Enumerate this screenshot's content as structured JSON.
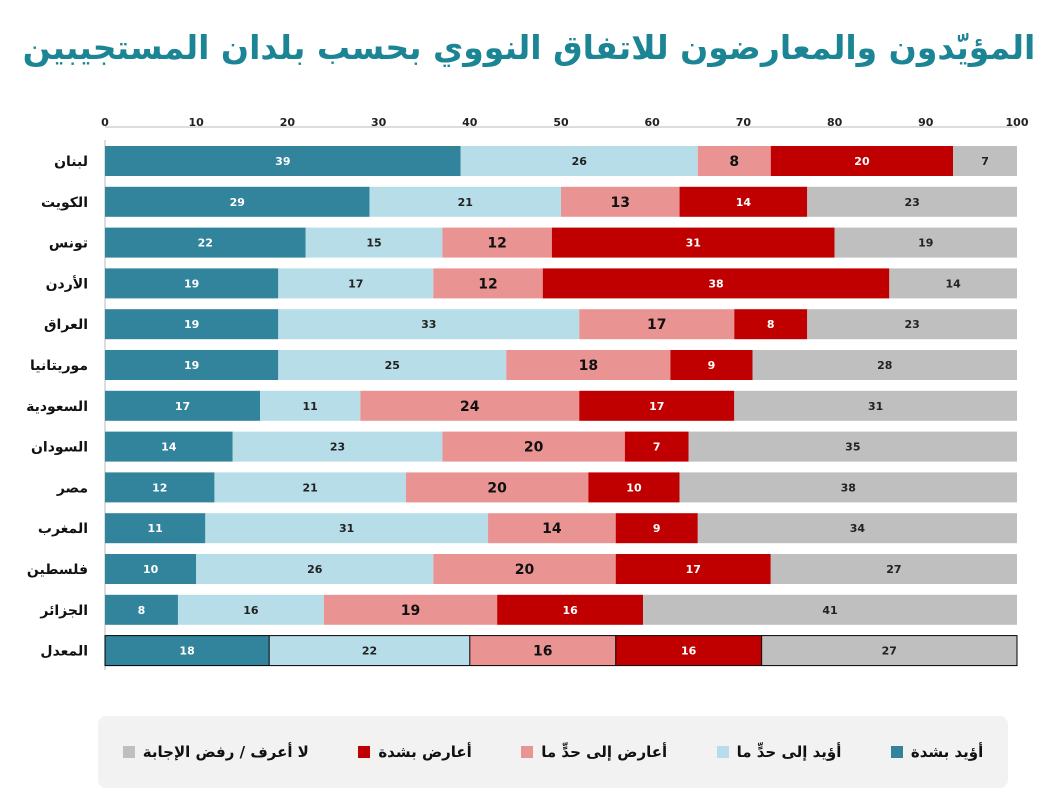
{
  "chart_data": {
    "type": "bar",
    "orientation": "horizontal",
    "stacked": true,
    "title": "المؤيّدون والمعارضون للاتفاق النووي بحسب بلدان المستجيبين",
    "xlim": [
      0,
      100
    ],
    "xticks": [
      0,
      10,
      20,
      30,
      40,
      50,
      60,
      70,
      80,
      90,
      100
    ],
    "legend_position": "bottom",
    "categories": [
      "لبنان",
      "الكويت",
      "تونس",
      "الأردن",
      "العراق",
      "موريتانيا",
      "السعودية",
      "السودان",
      "مصر",
      "المغرب",
      "فلسطين",
      "الجزائر",
      "المعدل"
    ],
    "series": [
      {
        "name": "أؤيد بشدة",
        "color": "#31849b",
        "values": [
          39,
          29,
          22,
          19,
          19,
          19,
          17,
          14,
          12,
          11,
          10,
          8,
          18
        ]
      },
      {
        "name": "أؤيد إلى حدٍّ ما",
        "color": "#b7dde8",
        "values": [
          26,
          21,
          15,
          17,
          33,
          25,
          11,
          23,
          21,
          31,
          26,
          16,
          22
        ]
      },
      {
        "name": "أعارض إلى حدٍّ ما",
        "color": "#e99493",
        "values": [
          8,
          13,
          12,
          12,
          17,
          18,
          24,
          20,
          20,
          14,
          20,
          19,
          16
        ]
      },
      {
        "name": "أعارض بشدة",
        "color": "#c00000",
        "values": [
          20,
          14,
          31,
          38,
          8,
          9,
          17,
          7,
          10,
          9,
          17,
          16,
          16
        ]
      },
      {
        "name": "لا أعرف / رفض الإجابة",
        "color": "#bfbfbf",
        "values": [
          7,
          23,
          19,
          14,
          23,
          28,
          31,
          35,
          38,
          34,
          27,
          41,
          27
        ]
      }
    ]
  }
}
